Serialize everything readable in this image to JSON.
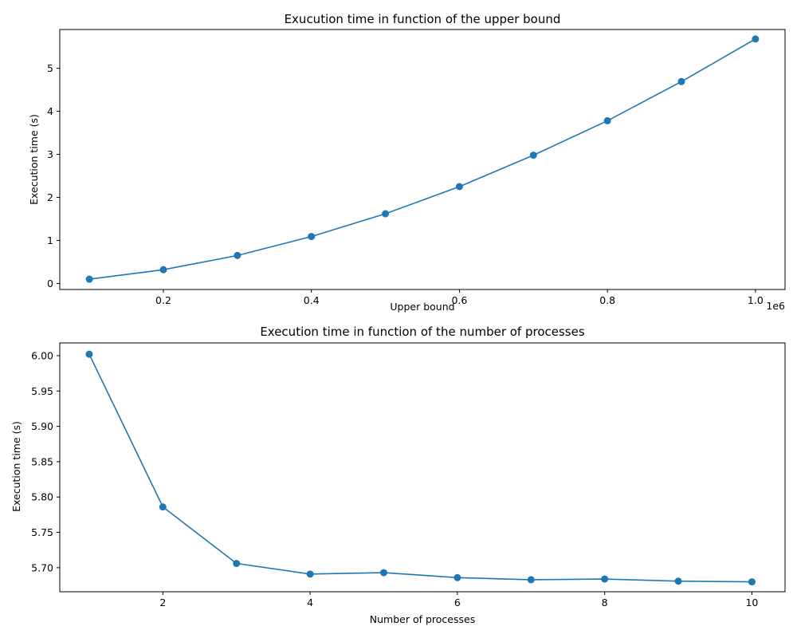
{
  "chart_data": [
    {
      "type": "line",
      "title": "Exucution time in function of the upper bound",
      "xlabel": "Upper bound",
      "ylabel": "Execution time (s)",
      "x_offset_label": "1e6",
      "x_scale_factor": 1000000,
      "xlim": [
        60000,
        1040000
      ],
      "ylim": [
        -0.14,
        5.9
      ],
      "xticks": [
        0.2,
        0.4,
        0.6,
        0.8,
        1.0
      ],
      "xtick_labels": [
        "0.2",
        "0.4",
        "0.6",
        "0.8",
        "1.0"
      ],
      "yticks": [
        0,
        1,
        2,
        3,
        4,
        5
      ],
      "ytick_labels": [
        "0",
        "1",
        "2",
        "3",
        "4",
        "5"
      ],
      "grid": false,
      "color": "#1f77b4",
      "series": [
        {
          "x": [
            100000,
            200000,
            300000,
            400000,
            500000,
            600000,
            700000,
            800000,
            900000,
            1000000
          ],
          "y": [
            0.1,
            0.32,
            0.65,
            1.09,
            1.62,
            2.25,
            2.98,
            3.78,
            4.69,
            5.68
          ]
        }
      ]
    },
    {
      "type": "line",
      "title": "Execution time in function of the number of processes",
      "xlabel": "Number of processes",
      "ylabel": "Execution time (s)",
      "xlim": [
        0.6,
        10.45
      ],
      "ylim": [
        5.666,
        6.018
      ],
      "xticks": [
        2,
        4,
        6,
        8,
        10
      ],
      "xtick_labels": [
        "2",
        "4",
        "6",
        "8",
        "10"
      ],
      "yticks": [
        5.7,
        5.75,
        5.8,
        5.85,
        5.9,
        5.95,
        6.0
      ],
      "ytick_labels": [
        "5.70",
        "5.75",
        "5.80",
        "5.85",
        "5.90",
        "5.95",
        "6.00"
      ],
      "grid": false,
      "color": "#1f77b4",
      "series": [
        {
          "x": [
            1,
            2,
            3,
            4,
            5,
            6,
            7,
            8,
            9,
            10
          ],
          "y": [
            6.002,
            5.786,
            5.706,
            5.691,
            5.693,
            5.686,
            5.683,
            5.684,
            5.681,
            5.68
          ]
        }
      ]
    }
  ]
}
